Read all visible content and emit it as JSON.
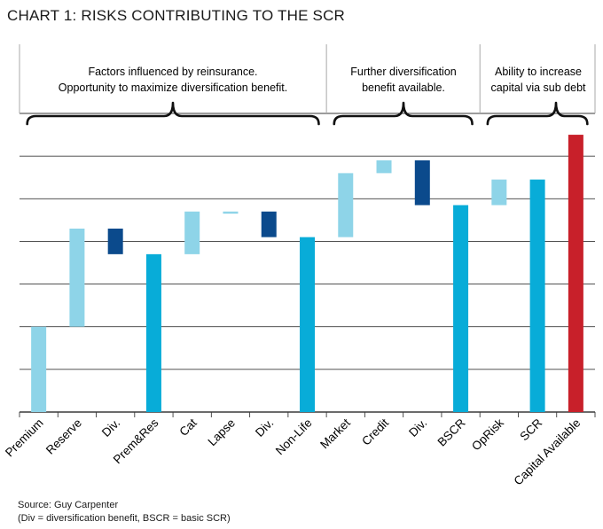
{
  "header": {
    "title": "CHART 1: RISKS CONTRIBUTING TO THE SCR"
  },
  "annotations": [
    {
      "line1": "Factors influenced by reinsurance.",
      "line2": "Opportunity to maximize diversification benefit."
    },
    {
      "line1": "Further diversification",
      "line2": "benefit available."
    },
    {
      "line1": "Ability to increase",
      "line2": "capital via sub debt"
    }
  ],
  "footer": {
    "source": "Source: Guy Carpenter",
    "note": "(Div = diversification benefit, BSCR = basic SCR)"
  },
  "colors": {
    "light": "#8ed4e8",
    "medium": "#08acd8",
    "dark": "#0b4a8c",
    "red": "#c8202a",
    "grid": "#3a3a3a",
    "divider": "#a8a8a8"
  },
  "chart_data": {
    "type": "bar",
    "subtype": "waterfall",
    "categories": [
      "Premium",
      "Reserve",
      "Div.",
      "Prem&Res",
      "Cat",
      "Lapse",
      "Div.",
      "Non-Life",
      "Market",
      "Credit",
      "Div.",
      "BSCR",
      "OpRisk",
      "SCR",
      "Capital Available"
    ],
    "bars": [
      {
        "low": 0,
        "high": 2.0,
        "color": "light"
      },
      {
        "low": 2.0,
        "high": 4.3,
        "color": "light"
      },
      {
        "low": 3.7,
        "high": 4.3,
        "color": "dark"
      },
      {
        "low": 0,
        "high": 3.7,
        "color": "medium"
      },
      {
        "low": 3.7,
        "high": 4.7,
        "color": "light"
      },
      {
        "low": 4.65,
        "high": 4.7,
        "color": "light"
      },
      {
        "low": 4.1,
        "high": 4.7,
        "color": "dark"
      },
      {
        "low": 0,
        "high": 4.1,
        "color": "medium"
      },
      {
        "low": 4.1,
        "high": 5.6,
        "color": "light"
      },
      {
        "low": 5.6,
        "high": 5.9,
        "color": "light"
      },
      {
        "low": 4.85,
        "high": 5.9,
        "color": "dark"
      },
      {
        "low": 0,
        "high": 4.85,
        "color": "medium"
      },
      {
        "low": 4.85,
        "high": 5.45,
        "color": "light"
      },
      {
        "low": 0,
        "high": 5.45,
        "color": "medium"
      },
      {
        "low": 0,
        "high": 6.5,
        "color": "red"
      }
    ],
    "ylim": [
      0,
      7
    ],
    "gridlines": 7,
    "y_tick_labels": false,
    "groups": [
      {
        "from": 0,
        "to": 7
      },
      {
        "from": 8,
        "to": 11
      },
      {
        "from": 12,
        "to": 14
      }
    ]
  }
}
